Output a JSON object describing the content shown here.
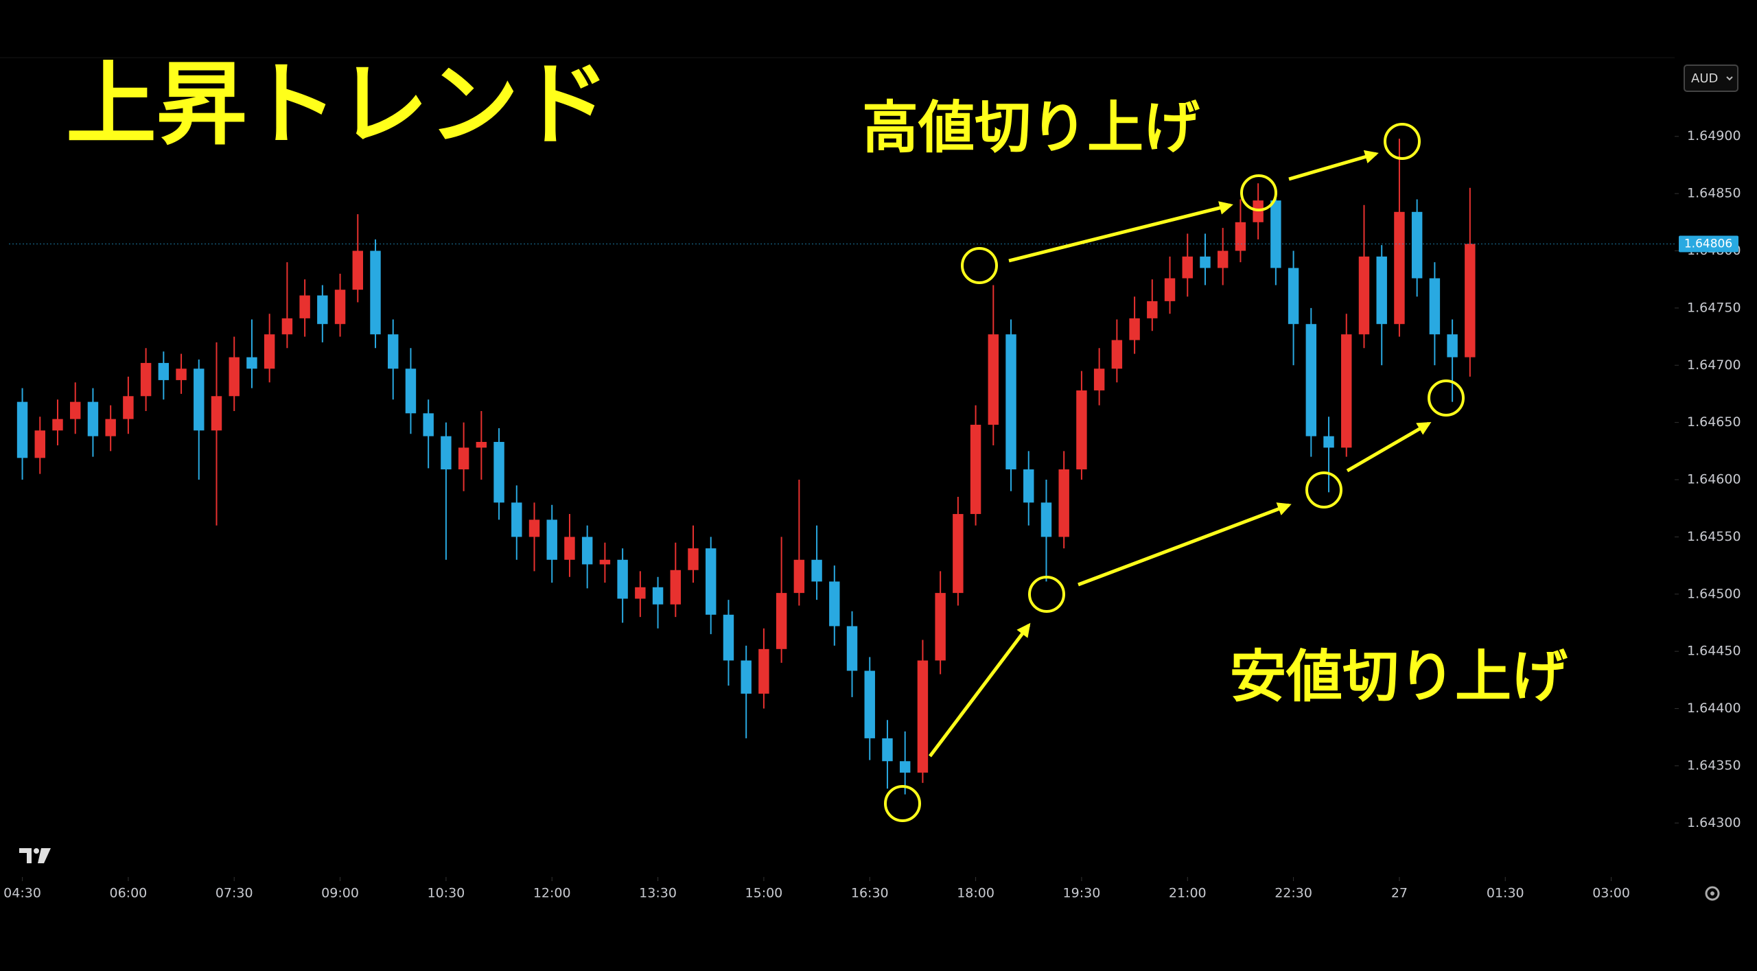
{
  "header": {
    "title": "上昇トレンド"
  },
  "annotations": {
    "higher_highs": "高値切り上げ",
    "higher_lows": "安値切り上げ"
  },
  "toolbar": {
    "symbol": "AUD"
  },
  "chart_data": {
    "type": "candlestick",
    "up_color": "#e8312f",
    "down_color": "#29a9e1",
    "xlim": [
      4.31,
      27.83
    ],
    "xticks": [
      {
        "value": 4.5,
        "label": "04:30"
      },
      {
        "value": 6,
        "label": "06:00"
      },
      {
        "value": 7.5,
        "label": "07:30"
      },
      {
        "value": 9,
        "label": "09:00"
      },
      {
        "value": 10.5,
        "label": "10:30"
      },
      {
        "value": 12,
        "label": "12:00"
      },
      {
        "value": 13.5,
        "label": "13:30"
      },
      {
        "value": 15,
        "label": "15:00"
      },
      {
        "value": 16.5,
        "label": "16:30"
      },
      {
        "value": 18,
        "label": "18:00"
      },
      {
        "value": 19.5,
        "label": "19:30"
      },
      {
        "value": 21,
        "label": "21:00"
      },
      {
        "value": 22.5,
        "label": "22:30"
      },
      {
        "value": 24,
        "label": "27"
      },
      {
        "value": 25.5,
        "label": "01:30"
      },
      {
        "value": 27,
        "label": "03:00"
      }
    ],
    "ylim": [
      1.6426,
      1.6497
    ],
    "yticks": [
      {
        "value": 1.643,
        "label": "1.64300"
      },
      {
        "value": 1.6435,
        "label": "1.64350"
      },
      {
        "value": 1.644,
        "label": "1.64400"
      },
      {
        "value": 1.6445,
        "label": "1.64450"
      },
      {
        "value": 1.645,
        "label": "1.64500"
      },
      {
        "value": 1.6455,
        "label": "1.64550"
      },
      {
        "value": 1.646,
        "label": "1.64600"
      },
      {
        "value": 1.6465,
        "label": "1.64650"
      },
      {
        "value": 1.647,
        "label": "1.64700"
      },
      {
        "value": 1.6475,
        "label": "1.64750"
      },
      {
        "value": 1.648,
        "label": "1.64800"
      },
      {
        "value": 1.6485,
        "label": "1.64850"
      },
      {
        "value": 1.649,
        "label": "1.64900"
      }
    ],
    "grid": false,
    "last_price": 1.64806,
    "x": [
      4.5,
      4.75,
      5,
      5.25,
      5.5,
      5.75,
      6,
      6.25,
      6.5,
      6.75,
      7,
      7.25,
      7.5,
      7.75,
      8,
      8.25,
      8.5,
      8.75,
      9,
      9.25,
      9.5,
      9.75,
      10,
      10.25,
      10.5,
      10.75,
      11,
      11.25,
      11.5,
      11.75,
      12,
      12.25,
      12.5,
      12.75,
      13,
      13.25,
      13.5,
      13.75,
      14,
      14.25,
      14.5,
      14.75,
      15,
      15.25,
      15.5,
      15.75,
      16,
      16.25,
      16.5,
      16.75,
      17,
      17.25,
      17.5,
      17.75,
      18,
      18.25,
      18.5,
      18.75,
      19,
      19.25,
      19.5,
      19.75,
      20,
      20.25,
      20.5,
      20.75,
      21,
      21.25,
      21.5,
      21.75,
      22,
      22.25,
      22.5,
      22.75,
      23,
      23.25,
      23.5,
      23.75,
      24,
      24.25,
      24.5,
      24.75,
      25
    ],
    "open": [
      1.64668,
      1.64619,
      1.64643,
      1.64653,
      1.64668,
      1.64638,
      1.64653,
      1.64673,
      1.64702,
      1.64687,
      1.64697,
      1.64643,
      1.64673,
      1.64707,
      1.64697,
      1.64727,
      1.64741,
      1.64761,
      1.64736,
      1.64766,
      1.648,
      1.64727,
      1.64697,
      1.64658,
      1.64638,
      1.64609,
      1.64628,
      1.64633,
      1.6458,
      1.6455,
      1.64565,
      1.6453,
      1.6455,
      1.64526,
      1.6453,
      1.64496,
      1.64506,
      1.64491,
      1.64521,
      1.6454,
      1.64482,
      1.64442,
      1.64413,
      1.64452,
      1.64501,
      1.6453,
      1.64511,
      1.64472,
      1.64433,
      1.64374,
      1.64354,
      1.64344,
      1.64442,
      1.64501,
      1.6457,
      1.64648,
      1.64727,
      1.64609,
      1.6458,
      1.6455,
      1.64609,
      1.64678,
      1.64697,
      1.64722,
      1.64741,
      1.64756,
      1.64776,
      1.64795,
      1.64785,
      1.648,
      1.64825,
      1.64844,
      1.64785,
      1.64736,
      1.64638,
      1.64628,
      1.64727,
      1.64795,
      1.64736,
      1.64834,
      1.64776,
      1.64727,
      1.64707
    ],
    "high": [
      1.6468,
      1.64655,
      1.6467,
      1.64685,
      1.6468,
      1.64665,
      1.6469,
      1.64715,
      1.64712,
      1.6471,
      1.64705,
      1.6472,
      1.64725,
      1.6474,
      1.64745,
      1.6479,
      1.64775,
      1.6477,
      1.6478,
      1.64832,
      1.6481,
      1.6474,
      1.64715,
      1.6467,
      1.6465,
      1.6465,
      1.6466,
      1.64645,
      1.64595,
      1.6458,
      1.64578,
      1.6457,
      1.6456,
      1.64545,
      1.6454,
      1.6452,
      1.64515,
      1.64545,
      1.6456,
      1.6455,
      1.64495,
      1.64455,
      1.6447,
      1.6455,
      1.646,
      1.6456,
      1.64525,
      1.64485,
      1.64445,
      1.6439,
      1.6438,
      1.6446,
      1.6452,
      1.64585,
      1.64665,
      1.6477,
      1.6474,
      1.64625,
      1.646,
      1.64625,
      1.64695,
      1.64715,
      1.6474,
      1.6476,
      1.64775,
      1.64795,
      1.64815,
      1.64815,
      1.6482,
      1.64845,
      1.64859,
      1.64855,
      1.648,
      1.6475,
      1.64655,
      1.64745,
      1.6484,
      1.64805,
      1.64898,
      1.64845,
      1.6479,
      1.6474,
      1.64855
    ],
    "low": [
      1.646,
      1.64605,
      1.6463,
      1.6464,
      1.6462,
      1.64625,
      1.6464,
      1.6466,
      1.6467,
      1.64675,
      1.646,
      1.6456,
      1.6466,
      1.6468,
      1.64685,
      1.64715,
      1.64725,
      1.6472,
      1.64725,
      1.64755,
      1.64715,
      1.6467,
      1.6464,
      1.6461,
      1.6453,
      1.6459,
      1.646,
      1.64565,
      1.6453,
      1.6452,
      1.6451,
      1.64515,
      1.64505,
      1.6451,
      1.64475,
      1.6448,
      1.6447,
      1.6448,
      1.6451,
      1.64465,
      1.6442,
      1.64374,
      1.644,
      1.6444,
      1.6449,
      1.64495,
      1.64455,
      1.6441,
      1.64355,
      1.6433,
      1.64325,
      1.64335,
      1.6443,
      1.6449,
      1.6456,
      1.6463,
      1.6459,
      1.6456,
      1.64511,
      1.6454,
      1.646,
      1.64665,
      1.64685,
      1.6471,
      1.6473,
      1.64745,
      1.6476,
      1.6477,
      1.6477,
      1.6479,
      1.6481,
      1.6477,
      1.647,
      1.6462,
      1.64589,
      1.6462,
      1.64715,
      1.647,
      1.64725,
      1.6476,
      1.647,
      1.64668,
      1.6469
    ],
    "close": [
      1.64619,
      1.64643,
      1.64653,
      1.64668,
      1.64638,
      1.64653,
      1.64673,
      1.64702,
      1.64687,
      1.64697,
      1.64643,
      1.64673,
      1.64707,
      1.64697,
      1.64727,
      1.64741,
      1.64761,
      1.64736,
      1.64766,
      1.648,
      1.64727,
      1.64697,
      1.64658,
      1.64638,
      1.64609,
      1.64628,
      1.64633,
      1.6458,
      1.6455,
      1.64565,
      1.6453,
      1.6455,
      1.64526,
      1.6453,
      1.64496,
      1.64506,
      1.64491,
      1.64521,
      1.6454,
      1.64482,
      1.64442,
      1.64413,
      1.64452,
      1.64501,
      1.6453,
      1.64511,
      1.64472,
      1.64433,
      1.64374,
      1.64354,
      1.64344,
      1.64442,
      1.64501,
      1.6457,
      1.64648,
      1.64727,
      1.64609,
      1.6458,
      1.6455,
      1.64609,
      1.64678,
      1.64697,
      1.64722,
      1.64741,
      1.64756,
      1.64776,
      1.64795,
      1.64785,
      1.648,
      1.64825,
      1.64844,
      1.64785,
      1.64736,
      1.64638,
      1.64628,
      1.64727,
      1.64795,
      1.64736,
      1.64834,
      1.64776,
      1.64727,
      1.64707,
      1.64806
    ]
  }
}
